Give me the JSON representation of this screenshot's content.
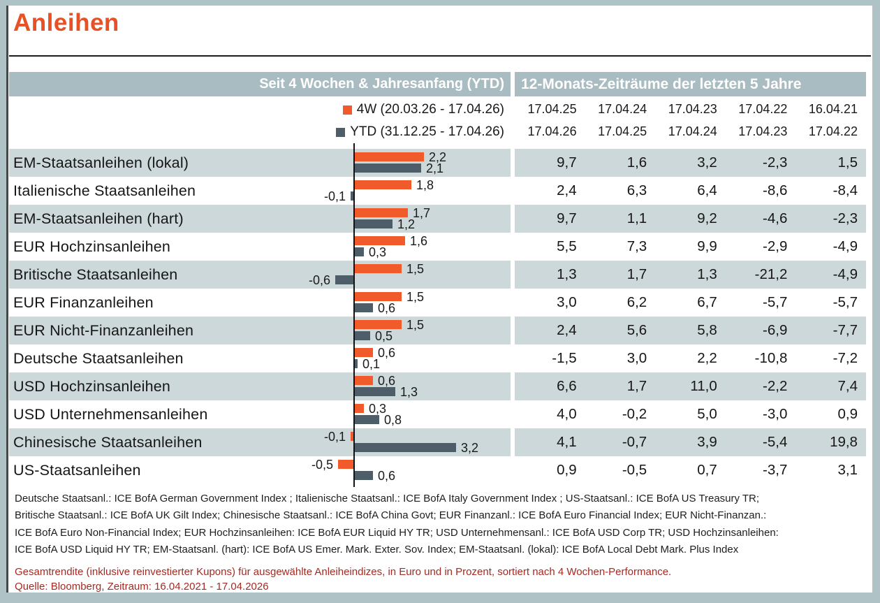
{
  "title": "Anleihen",
  "table_header": {
    "left": "Seit 4 Wochen & Jahresanfang (YTD)",
    "right": "12-Monats-Zeiträume der letzten 5 Jahre"
  },
  "legend": {
    "items": [
      {
        "label": "4W (20.03.26 - 17.04.26)",
        "color": "#F15A2B"
      },
      {
        "label": "YTD (31.12.25 - 17.04.26)",
        "color": "#4D5E69"
      }
    ]
  },
  "period_columns": {
    "start": [
      "17.04.25",
      "17.04.24",
      "17.04.23",
      "17.04.22",
      "16.04.21"
    ],
    "end": [
      "17.04.26",
      "17.04.25",
      "17.04.24",
      "17.04.23",
      "17.04.22"
    ]
  },
  "rows": [
    {
      "label": "EM-Staatsanleihen (lokal)",
      "w4": "2,2",
      "ytd": "2,1",
      "values": [
        "9,7",
        "1,6",
        "3,2",
        "-2,3",
        "1,5"
      ]
    },
    {
      "label": "Italienische Staatsanleihen",
      "w4": "1,8",
      "ytd": "-0,1",
      "values": [
        "2,4",
        "6,3",
        "6,4",
        "-8,6",
        "-8,4"
      ]
    },
    {
      "label": "EM-Staatsanleihen (hart)",
      "w4": "1,7",
      "ytd": "1,2",
      "values": [
        "9,7",
        "1,1",
        "9,2",
        "-4,6",
        "-2,3"
      ]
    },
    {
      "label": "EUR Hochzinsanleihen",
      "w4": "1,6",
      "ytd": "0,3",
      "values": [
        "5,5",
        "7,3",
        "9,9",
        "-2,9",
        "-4,9"
      ]
    },
    {
      "label": "Britische Staatsanleihen",
      "w4": "1,5",
      "ytd": "-0,6",
      "values": [
        "1,3",
        "1,7",
        "1,3",
        "-21,2",
        "-4,9"
      ]
    },
    {
      "label": "EUR Finanzanleihen",
      "w4": "1,5",
      "ytd": "0,6",
      "values": [
        "3,0",
        "6,2",
        "6,7",
        "-5,7",
        "-5,7"
      ]
    },
    {
      "label": "EUR Nicht-Finanzanleihen",
      "w4": "1,5",
      "ytd": "0,5",
      "values": [
        "2,4",
        "5,6",
        "5,8",
        "-6,9",
        "-7,7"
      ]
    },
    {
      "label": "Deutsche Staatsanleihen",
      "w4": "0,6",
      "ytd": "0,1",
      "values": [
        "-1,5",
        "3,0",
        "2,2",
        "-10,8",
        "-7,2"
      ]
    },
    {
      "label": "USD Hochzinsanleihen",
      "w4": "0,6",
      "ytd": "1,3",
      "values": [
        "6,6",
        "1,7",
        "11,0",
        "-2,2",
        "7,4"
      ]
    },
    {
      "label": "USD Unternehmensanleihen",
      "w4": "0,3",
      "ytd": "0,8",
      "values": [
        "4,0",
        "-0,2",
        "5,0",
        "-3,0",
        "0,9"
      ]
    },
    {
      "label": "Chinesische Staatsanleihen",
      "w4": "-0,1",
      "ytd": "3,2",
      "values": [
        "4,1",
        "-0,7",
        "3,9",
        "-5,4",
        "19,8"
      ]
    },
    {
      "label": "US-Staatsanleihen",
      "w4": "-0,5",
      "ytd": "0,6",
      "values": [
        "0,9",
        "-0,5",
        "0,7",
        "-3,7",
        "3,1"
      ]
    }
  ],
  "footnote_lines": [
    "Deutsche Staatsanl.: ICE BofA German Government Index ; Italienische Staatsanl.: ICE BofA Italy Government Index ; US-Staatsanl.: ICE BofA US Treasury TR;",
    "Britische Staatsanl.: ICE BofA UK Gilt Index; Chinesische Staatsanl.: ICE BofA China Govt; EUR Finanzanl.: ICE BofA Euro Financial Index; EUR Nicht-Finanzan.:",
    "ICE BofA Euro Non-Financial Index; EUR Hochzinsanleihen: ICE BofA EUR Liquid HY TR; USD Unternehmensanl.: ICE BofA USD Corp TR; USD Hochzinsanleihen:",
    "ICE BofA USD Liquid HY TR; EM-Staatsanl. (hart): ICE BofA US Emer. Mark. Exter. Sov. Index; EM-Staatsanl. (lokal):  ICE BofA Local Debt Mark. Plus Index"
  ],
  "source_lines": [
    "Gesamtrendite (inklusive reinvestierter Kupons) für ausgewählte Anleiheindizes, in Euro und in Prozent, sortiert nach 4 Wochen-Performance.",
    "Quelle: Bloomberg, Zeitraum: 16.04.2021 - 17.04.2026"
  ],
  "colors": {
    "title": "#E85026",
    "bar_4w": "#F15A2B",
    "bar_ytd": "#4D5E69",
    "header_band": "#A9BCC1",
    "row_band": "#CDD8DA",
    "frame": "#AFC2C6",
    "source_text": "#A52A22"
  },
  "chart_data": {
    "type": "bar",
    "orientation": "horizontal",
    "unit": "percent",
    "title": "Anleihen",
    "sorted_by": "4W performance descending",
    "legend_position": "top",
    "categories": [
      "EM-Staatsanleihen (lokal)",
      "Italienische Staatsanleihen",
      "EM-Staatsanleihen (hart)",
      "EUR Hochzinsanleihen",
      "Britische Staatsanleihen",
      "EUR Finanzanleihen",
      "EUR Nicht-Finanzanleihen",
      "Deutsche Staatsanleihen",
      "USD Hochzinsanleihen",
      "USD Unternehmensanleihen",
      "Chinesische Staatsanleihen",
      "US-Staatsanleihen"
    ],
    "series": [
      {
        "name": "4W (20.03.26 - 17.04.26)",
        "color": "#F15A2B",
        "values": [
          2.2,
          1.8,
          1.7,
          1.6,
          1.5,
          1.5,
          1.5,
          0.6,
          0.6,
          0.3,
          -0.1,
          -0.5
        ]
      },
      {
        "name": "YTD (31.12.25 - 17.04.26)",
        "color": "#4D5E69",
        "values": [
          2.1,
          -0.1,
          1.2,
          0.3,
          -0.6,
          0.6,
          0.5,
          0.1,
          1.3,
          0.8,
          3.2,
          0.6
        ]
      }
    ],
    "xlim": [
      -3.5,
      5
    ],
    "grid": false,
    "table_12m": {
      "period_start": [
        "17.04.25",
        "17.04.24",
        "17.04.23",
        "17.04.22",
        "16.04.21"
      ],
      "period_end": [
        "17.04.26",
        "17.04.25",
        "17.04.24",
        "17.04.23",
        "17.04.22"
      ],
      "rows": [
        [
          9.7,
          1.6,
          3.2,
          -2.3,
          1.5
        ],
        [
          2.4,
          6.3,
          6.4,
          -8.6,
          -8.4
        ],
        [
          9.7,
          1.1,
          9.2,
          -4.6,
          -2.3
        ],
        [
          5.5,
          7.3,
          9.9,
          -2.9,
          -4.9
        ],
        [
          1.3,
          1.7,
          1.3,
          -21.2,
          -4.9
        ],
        [
          3.0,
          6.2,
          6.7,
          -5.7,
          -5.7
        ],
        [
          2.4,
          5.6,
          5.8,
          -6.9,
          -7.7
        ],
        [
          -1.5,
          3.0,
          2.2,
          -10.8,
          -7.2
        ],
        [
          6.6,
          1.7,
          11.0,
          -2.2,
          7.4
        ],
        [
          4.0,
          -0.2,
          5.0,
          -3.0,
          0.9
        ],
        [
          4.1,
          -0.7,
          3.9,
          -5.4,
          19.8
        ],
        [
          0.9,
          -0.5,
          0.7,
          -3.7,
          3.1
        ]
      ]
    }
  }
}
